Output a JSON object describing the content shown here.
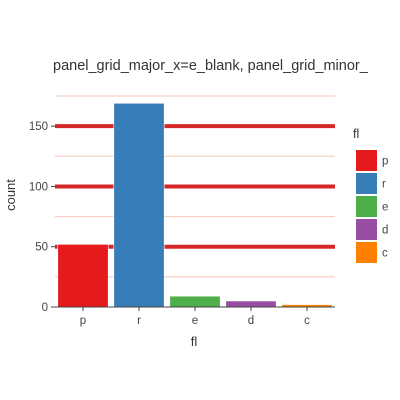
{
  "chart_data": {
    "type": "bar",
    "title": "panel_grid_major_x=e_blank, panel_grid_minor_",
    "xlabel": "fl",
    "ylabel": "count",
    "categories": [
      "p",
      "r",
      "e",
      "d",
      "c"
    ],
    "values": [
      52,
      169,
      9,
      5,
      2
    ],
    "colors": [
      "#e41a1c",
      "#377eb8",
      "#4daf4a",
      "#984ea3",
      "#ff7f00"
    ],
    "ylim": [
      0,
      180
    ],
    "yticks": [
      0,
      50,
      100,
      150
    ],
    "yminor": [
      25,
      75,
      125,
      175
    ],
    "grid_major_color": "#d62728",
    "grid_minor_color": "#f4c7b8",
    "legend": {
      "title": "fl",
      "position": "right",
      "entries": [
        "p",
        "r",
        "e",
        "d",
        "c"
      ]
    }
  }
}
